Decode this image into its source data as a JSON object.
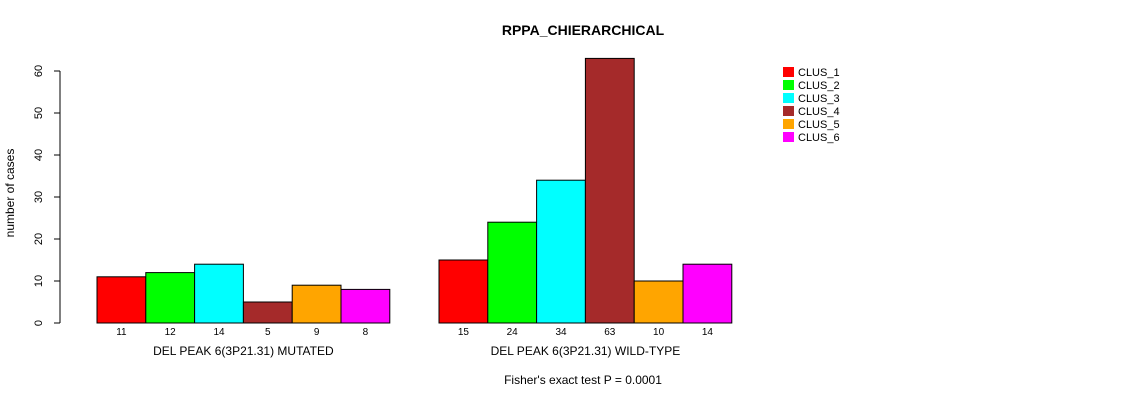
{
  "chart_data": {
    "type": "bar",
    "title": "RPPA_CHIERARCHICAL",
    "ylabel": "number of cases",
    "ylim": [
      0,
      60
    ],
    "yticks": [
      0,
      10,
      20,
      30,
      40,
      50,
      60
    ],
    "groups": [
      {
        "label": "DEL PEAK  6(3P21.31) MUTATED",
        "values": [
          11,
          12,
          14,
          5,
          9,
          8
        ]
      },
      {
        "label": "DEL PEAK  6(3P21.31) WILD-TYPE",
        "values": [
          15,
          24,
          34,
          63,
          10,
          14
        ]
      }
    ],
    "series": [
      {
        "name": "CLUS_1",
        "color": "#ff0000"
      },
      {
        "name": "CLUS_2",
        "color": "#00ff00"
      },
      {
        "name": "CLUS_3",
        "color": "#00ffff"
      },
      {
        "name": "CLUS_4",
        "color": "#a52a2a"
      },
      {
        "name": "CLUS_5",
        "color": "#ffa500"
      },
      {
        "name": "CLUS_6",
        "color": "#ff00ff"
      }
    ],
    "legend_position": "top-right",
    "footnote": "Fisher's exact test P = 0.0001"
  }
}
